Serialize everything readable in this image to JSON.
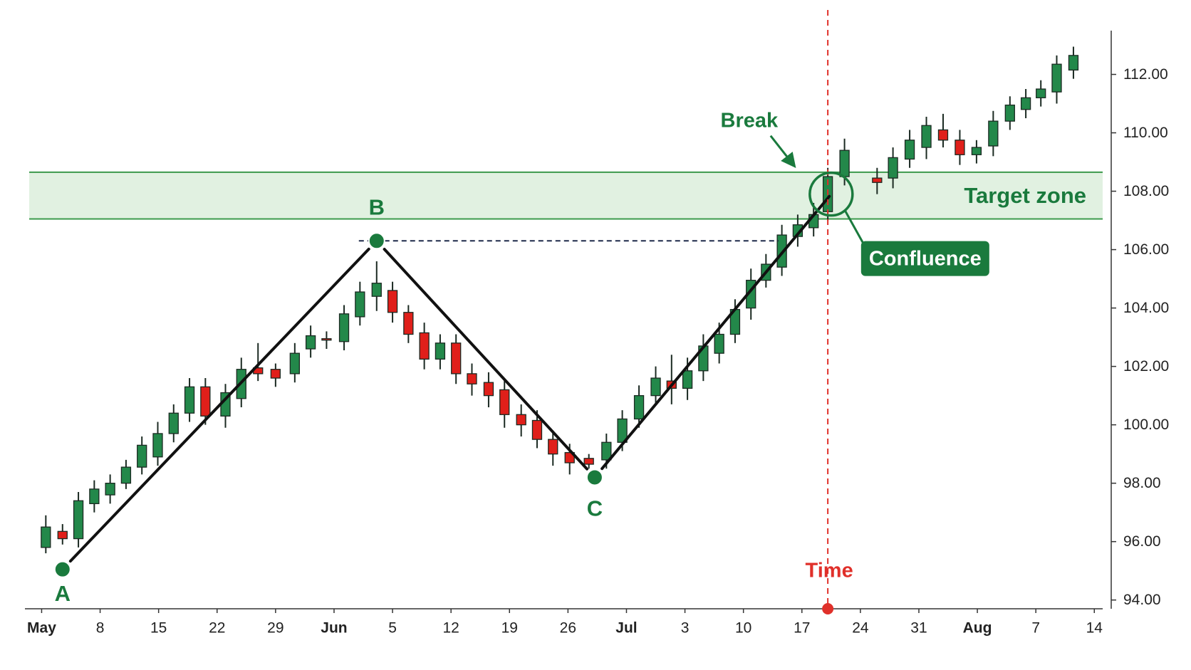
{
  "chart_data": {
    "type": "candlestick",
    "x": [
      0.5,
      2.5,
      4.4,
      6.3,
      8.2,
      10.1,
      12,
      13.9,
      15.8,
      17.7,
      19.6,
      22,
      23.9,
      25.9,
      28,
      30.3,
      32.2,
      34.1,
      36.2,
      38.1,
      40.1,
      42,
      43.9,
      45.8,
      47.7,
      49.6,
      51.5,
      53.5,
      55.4,
      57.4,
      59.3,
      61.2,
      63.2,
      65.5,
      67.6,
      69.5,
      71.5,
      73.5,
      75.4,
      77.3,
      79.2,
      81.1,
      83,
      84.9,
      86.7,
      88.6,
      90.5,
      92.4,
      94.1,
      96.1,
      100,
      101.9,
      103.9,
      105.9,
      107.9,
      109.9,
      111.9,
      113.9,
      115.9,
      117.8,
      119.6,
      121.5,
      123.5
    ],
    "open": [
      95.8,
      96.35,
      96.1,
      97.3,
      97.6,
      98.0,
      98.55,
      98.9,
      99.7,
      100.4,
      101.3,
      100.3,
      100.9,
      101.95,
      101.9,
      101.75,
      102.6,
      102.95,
      102.85,
      103.7,
      104.4,
      104.6,
      103.85,
      103.15,
      102.25,
      102.8,
      101.75,
      101.45,
      101.2,
      100.35,
      100.15,
      99.5,
      99.05,
      98.85,
      98.8,
      99.4,
      100.2,
      101.0,
      101.5,
      101.25,
      101.85,
      102.45,
      103.1,
      104.0,
      104.95,
      105.4,
      106.45,
      106.75,
      107.3,
      108.5,
      108.45,
      108.45,
      109.1,
      109.5,
      110.1,
      109.75,
      109.25,
      109.55,
      110.4,
      110.8,
      111.2,
      111.4,
      112.15
    ],
    "high": [
      96.9,
      96.6,
      97.7,
      98.1,
      98.3,
      98.8,
      99.6,
      100.1,
      100.7,
      101.6,
      101.6,
      101.4,
      102.3,
      102.8,
      102.1,
      102.8,
      103.4,
      103.2,
      104.1,
      104.9,
      105.6,
      104.9,
      104.1,
      103.5,
      103.1,
      103.1,
      102.1,
      101.8,
      101.5,
      100.7,
      100.5,
      99.8,
      99.35,
      99.0,
      99.7,
      100.5,
      101.35,
      102.0,
      102.4,
      102.3,
      103.1,
      103.5,
      104.3,
      105.35,
      105.85,
      106.85,
      107.2,
      107.6,
      108.8,
      109.8,
      108.8,
      109.5,
      110.1,
      110.55,
      110.65,
      110.1,
      109.75,
      110.75,
      111.25,
      111.5,
      111.8,
      112.65,
      112.95
    ],
    "low": [
      95.6,
      95.9,
      95.8,
      97.0,
      97.3,
      97.8,
      98.3,
      98.6,
      99.4,
      100.1,
      100.0,
      99.9,
      100.6,
      101.5,
      101.3,
      101.45,
      102.3,
      102.6,
      102.55,
      103.4,
      103.9,
      103.5,
      102.8,
      101.9,
      101.9,
      101.4,
      101.0,
      100.6,
      99.9,
      99.6,
      99.2,
      98.6,
      98.3,
      98.5,
      98.5,
      99.1,
      99.9,
      100.7,
      100.7,
      100.85,
      101.5,
      102.1,
      102.8,
      103.6,
      104.7,
      105.1,
      106.1,
      106.45,
      107.0,
      108.2,
      107.9,
      108.1,
      108.8,
      109.1,
      109.5,
      108.9,
      108.95,
      109.2,
      110.1,
      110.5,
      110.9,
      111.0,
      111.85
    ],
    "close": [
      96.5,
      96.1,
      97.4,
      97.8,
      98.0,
      98.55,
      99.3,
      99.7,
      100.4,
      101.3,
      100.3,
      101.1,
      101.9,
      101.75,
      101.6,
      102.45,
      103.05,
      102.9,
      103.8,
      104.55,
      104.85,
      103.85,
      103.1,
      102.25,
      102.8,
      101.75,
      101.4,
      101.0,
      100.35,
      100.0,
      99.5,
      99.0,
      98.7,
      98.65,
      99.4,
      100.2,
      101.0,
      101.6,
      101.25,
      101.85,
      102.7,
      103.1,
      103.95,
      104.95,
      105.5,
      106.5,
      106.85,
      107.2,
      108.5,
      109.4,
      108.3,
      109.15,
      109.75,
      110.25,
      109.75,
      109.25,
      109.5,
      110.4,
      110.95,
      111.2,
      111.5,
      112.35,
      112.65
    ],
    "up_color": "#23884a",
    "down_color": "#e01f1a",
    "xlim": [
      -2,
      127
    ],
    "ylim": [
      93.7,
      113.5
    ],
    "xticks": [
      {
        "value": 0,
        "label": "May"
      },
      {
        "value": 7,
        "label": "8"
      },
      {
        "value": 14,
        "label": "15"
      },
      {
        "value": 21,
        "label": "22"
      },
      {
        "value": 28,
        "label": "29"
      },
      {
        "value": 35,
        "label": "Jun"
      },
      {
        "value": 42,
        "label": "5"
      },
      {
        "value": 49,
        "label": "12"
      },
      {
        "value": 56,
        "label": "19"
      },
      {
        "value": 63,
        "label": "26"
      },
      {
        "value": 70,
        "label": "Jul"
      },
      {
        "value": 77,
        "label": "3"
      },
      {
        "value": 84,
        "label": "10"
      },
      {
        "value": 91,
        "label": "17"
      },
      {
        "value": 98,
        "label": "24"
      },
      {
        "value": 105,
        "label": "31"
      },
      {
        "value": 112,
        "label": "Aug"
      },
      {
        "value": 119,
        "label": "7"
      },
      {
        "value": 126,
        "label": "14"
      }
    ],
    "yticks": [
      {
        "value": 94,
        "label": "94.00"
      },
      {
        "value": 96,
        "label": "96.00"
      },
      {
        "value": 98,
        "label": "98.00"
      },
      {
        "value": 100,
        "label": "100.00"
      },
      {
        "value": 102,
        "label": "102.00"
      },
      {
        "value": 104,
        "label": "104.00"
      },
      {
        "value": 106,
        "label": "106.00"
      },
      {
        "value": 108,
        "label": "108.00"
      },
      {
        "value": 110,
        "label": "110.00"
      },
      {
        "value": 112,
        "label": "112.00"
      }
    ],
    "pivots": [
      {
        "label": "A",
        "x": 2.5,
        "y": 95.05
      },
      {
        "label": "B",
        "x": 40.1,
        "y": 106.3
      },
      {
        "label": "C",
        "x": 66.2,
        "y": 98.2
      }
    ],
    "b_level_end": 88.2,
    "target_zone": {
      "label": "Target zone",
      "low": 107.05,
      "high": 108.65
    },
    "time_line": {
      "label": "Time",
      "x": 94.1
    },
    "break_label": "Break",
    "confluence": {
      "label": "Confluence",
      "x": 94.5,
      "y": 107.9
    }
  }
}
